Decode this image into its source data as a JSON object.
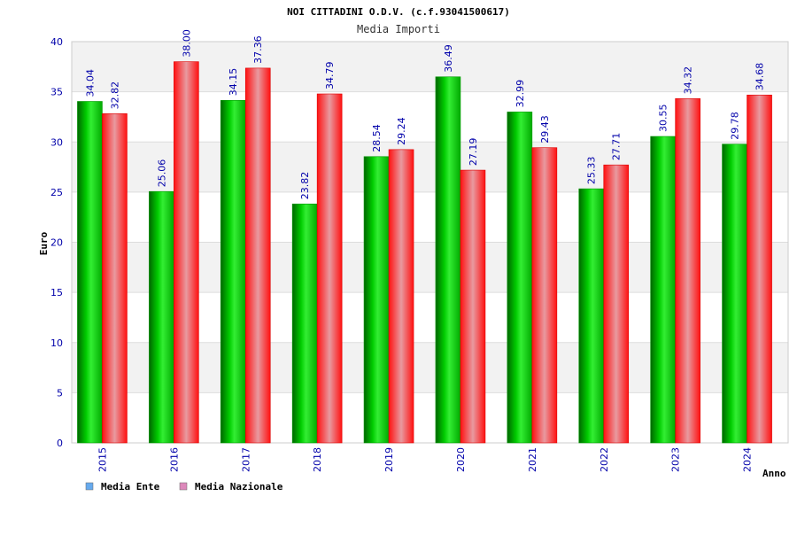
{
  "chart_data": {
    "type": "bar",
    "title": "NOI CITTADINI O.D.V. (c.f.93041500617)",
    "subtitle": "Media Importi",
    "xlabel": "Anno",
    "ylabel": "Euro",
    "ylim": [
      0,
      40
    ],
    "yticks": [
      0,
      5,
      10,
      15,
      20,
      25,
      30,
      35,
      40
    ],
    "grid": true,
    "legend_position": "bottom-left",
    "categories": [
      "2015",
      "2016",
      "2017",
      "2018",
      "2019",
      "2020",
      "2021",
      "2022",
      "2023",
      "2024"
    ],
    "series": [
      {
        "name": "Media Ente",
        "legend_color": "#66aaee",
        "color": "#00bb00",
        "values": [
          34.04,
          25.06,
          34.15,
          23.82,
          28.54,
          36.49,
          32.99,
          25.33,
          30.55,
          29.78
        ]
      },
      {
        "name": "Media Nazionale",
        "legend_color": "#dd88bb",
        "color": "#ee1111",
        "values": [
          32.82,
          38.0,
          37.36,
          34.79,
          29.24,
          27.19,
          29.43,
          27.71,
          34.32,
          34.68
        ]
      }
    ]
  }
}
